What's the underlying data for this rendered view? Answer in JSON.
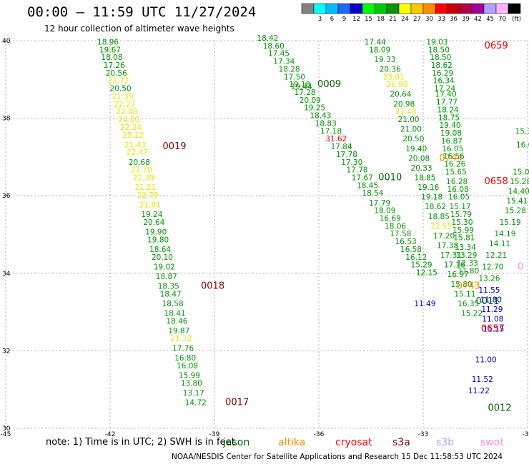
{
  "header": {
    "title": "00:00 – 11:59 UTC 11/27/2024",
    "subtitle": "12 hour collection of altimeter wave heights"
  },
  "colorbar": {
    "unit": "(ft)",
    "ticks": [
      "3",
      "6",
      "9",
      "12",
      "15",
      "18",
      "21",
      "24",
      "27",
      "30",
      "33",
      "36",
      "39",
      "42",
      "45",
      "70"
    ],
    "colors": [
      "#808080",
      "#00ffff",
      "#00bfff",
      "#1e64ff",
      "#0000cd",
      "#00ff00",
      "#00c800",
      "#009600",
      "#ffff00",
      "#ffc800",
      "#ff8c00",
      "#ff0000",
      "#cd0000",
      "#b4004b",
      "#a000a0",
      "#b4a0ff",
      "#ffb4ff",
      "#000000"
    ]
  },
  "footer": {
    "note": "note:  1) Time is in UTC; 2) SWH is in feet",
    "credit": "NOAA/NESDIS Center for Satellite Applications and Research   15 Dec 11:58:53 UTC 2024"
  },
  "satellites": {
    "jason": "jason",
    "altika": "altika",
    "cryosat": "cryosat",
    "s3a": "s3a",
    "s3b": "s3b",
    "swot": "swot"
  },
  "chart_data": {
    "type": "scatter",
    "xlabel": "",
    "ylabel": "",
    "xlim": [
      -45,
      -30
    ],
    "ylim": [
      30,
      40
    ],
    "x_ticks": [
      "-45",
      "-42",
      "-39",
      "-36",
      "-33",
      "-30"
    ],
    "y_ticks": [
      "30",
      "32",
      "34",
      "36",
      "38",
      "40"
    ],
    "grid": true,
    "colors": {
      "green": "#009600",
      "yellow": "#e6e600",
      "red": "#ff0000",
      "darkred": "#8b0000",
      "orange": "#ff8c00",
      "blue": "#0000cd",
      "pink": "#ff88dd",
      "darkgreen": "#006400"
    },
    "tracks": [
      {
        "values": [
          [
            -42.06,
            39.9,
            "18.96",
            "green"
          ],
          [
            -42.0,
            39.7,
            "19.67",
            "green"
          ],
          [
            -41.95,
            39.5,
            "18.08",
            "green"
          ],
          [
            -41.88,
            39.3,
            "17.26",
            "green"
          ],
          [
            -41.82,
            39.1,
            "20.56",
            "green"
          ],
          [
            -41.76,
            38.9,
            "21.72",
            "yellow"
          ],
          [
            -41.7,
            38.7,
            "20.50",
            "green"
          ],
          [
            -41.64,
            38.5,
            "21.39",
            "yellow"
          ],
          [
            -41.58,
            38.3,
            "22.27",
            "yellow"
          ],
          [
            -41.52,
            38.1,
            "22.88",
            "yellow"
          ],
          [
            -41.46,
            37.9,
            "24.00",
            "yellow"
          ],
          [
            -41.4,
            37.7,
            "22.24",
            "yellow"
          ],
          [
            -41.34,
            37.5,
            "23.12",
            "yellow"
          ],
          [
            -41.28,
            37.25,
            "21.43",
            "yellow"
          ],
          [
            -41.22,
            37.05,
            "22.47",
            "yellow"
          ],
          [
            -41.16,
            36.8,
            "20.68",
            "green"
          ],
          [
            -41.1,
            36.6,
            "21.70",
            "yellow"
          ],
          [
            -41.04,
            36.4,
            "22.39",
            "yellow"
          ],
          [
            -40.98,
            36.15,
            "21.21",
            "yellow"
          ],
          [
            -40.92,
            35.95,
            "22.79",
            "yellow"
          ],
          [
            -40.86,
            35.7,
            "21.81",
            "yellow"
          ],
          [
            -40.8,
            35.45,
            "19.24",
            "green"
          ],
          [
            -40.74,
            35.25,
            "20.64",
            "green"
          ],
          [
            -40.68,
            35.0,
            "19.90",
            "green"
          ],
          [
            -40.62,
            34.8,
            "19.80",
            "green"
          ],
          [
            -40.56,
            34.55,
            "18.64",
            "green"
          ],
          [
            -40.5,
            34.35,
            "20.10",
            "green"
          ],
          [
            -40.44,
            34.1,
            "19.02",
            "green"
          ],
          [
            -40.38,
            33.85,
            "18.87",
            "green"
          ],
          [
            -40.32,
            33.6,
            "18.35",
            "green"
          ],
          [
            -40.26,
            33.4,
            "18.47",
            "green"
          ],
          [
            -40.2,
            33.15,
            "18.58",
            "green"
          ],
          [
            -40.14,
            32.9,
            "18.41",
            "green"
          ],
          [
            -40.08,
            32.7,
            "18.46",
            "green"
          ],
          [
            -40.02,
            32.45,
            "19.87",
            "green"
          ],
          [
            -39.96,
            32.25,
            "21.32",
            "yellow"
          ],
          [
            -39.9,
            32.0,
            "17.76",
            "green"
          ],
          [
            -39.84,
            31.75,
            "16.80",
            "green"
          ],
          [
            -39.78,
            31.55,
            "16.08",
            "green"
          ],
          [
            -39.72,
            31.3,
            "15.99",
            "green"
          ],
          [
            -39.66,
            31.1,
            "13.80",
            "green"
          ],
          [
            -39.6,
            30.85,
            "13.17",
            "green"
          ],
          [
            -39.54,
            30.6,
            "14.72",
            "green"
          ]
        ],
        "labels": [
          [
            -40.15,
            37.2,
            "0019",
            "darkred"
          ],
          [
            -39.05,
            33.6,
            "0018",
            "darkred"
          ],
          [
            -38.35,
            30.6,
            "0017",
            "darkred"
          ]
        ]
      },
      {
        "values": [
          [
            -37.47,
            40.0,
            "18.42",
            "green"
          ],
          [
            -37.3,
            39.8,
            "18.60",
            "green"
          ],
          [
            -37.15,
            39.6,
            "17.45",
            "green"
          ],
          [
            -37.0,
            39.4,
            "17.34",
            "green"
          ],
          [
            -36.85,
            39.2,
            "18.28",
            "green"
          ],
          [
            -36.7,
            39.0,
            "17.50",
            "green"
          ],
          [
            -36.55,
            38.8,
            "19.18",
            "green"
          ],
          [
            -36.5,
            38.75,
            "19.44",
            "green"
          ],
          [
            -36.4,
            38.6,
            "17.28",
            "green"
          ],
          [
            -36.25,
            38.4,
            "20.09",
            "green"
          ],
          [
            -36.12,
            38.2,
            "19.25",
            "green"
          ],
          [
            -35.95,
            38.0,
            "18.43",
            "green"
          ],
          [
            -35.8,
            37.8,
            "18.83",
            "green"
          ],
          [
            -35.65,
            37.6,
            "17.18",
            "green"
          ],
          [
            -35.5,
            37.4,
            "31.62",
            "red"
          ],
          [
            -35.35,
            37.2,
            "17.84",
            "green"
          ],
          [
            -35.2,
            37.0,
            "17.78",
            "green"
          ],
          [
            -35.05,
            36.8,
            "17.30",
            "green"
          ],
          [
            -34.9,
            36.6,
            "17.78",
            "green"
          ],
          [
            -34.75,
            36.4,
            "17.67",
            "green"
          ],
          [
            -34.6,
            36.2,
            "18.45",
            "green"
          ],
          [
            -34.45,
            36.0,
            "18.54",
            "green"
          ],
          [
            -34.25,
            35.75,
            "17.79",
            "green"
          ],
          [
            -34.1,
            35.55,
            "18.09",
            "green"
          ],
          [
            -33.95,
            35.35,
            "16.69",
            "green"
          ],
          [
            -33.8,
            35.15,
            "18.06",
            "green"
          ],
          [
            -33.65,
            34.95,
            "17.58",
            "green"
          ],
          [
            -33.5,
            34.75,
            "16.53",
            "green"
          ],
          [
            -33.35,
            34.55,
            "16.58",
            "green"
          ],
          [
            -33.2,
            34.35,
            "16.12",
            "green"
          ],
          [
            -33.05,
            34.15,
            "15.29",
            "green"
          ],
          [
            -32.9,
            33.95,
            "12.15",
            "green"
          ]
        ],
        "labels": [
          [
            -35.7,
            38.8,
            "0009",
            "darkgreen"
          ]
        ]
      },
      {
        "values": [
          [
            -34.38,
            39.9,
            "17.44",
            "green"
          ],
          [
            -34.25,
            39.7,
            "18.09",
            "green"
          ],
          [
            -34.1,
            39.45,
            "19.33",
            "green"
          ],
          [
            -33.95,
            39.2,
            "20.36",
            "green"
          ],
          [
            -33.85,
            39.0,
            "23.01",
            "yellow"
          ],
          [
            -33.75,
            38.8,
            "26.90",
            "yellow"
          ],
          [
            -33.65,
            38.55,
            "20.64",
            "green"
          ],
          [
            -33.55,
            38.3,
            "20.98",
            "green"
          ],
          [
            -33.5,
            38.1,
            "21.43",
            "yellow"
          ],
          [
            -33.42,
            37.9,
            "21.00",
            "green"
          ],
          [
            -33.35,
            37.65,
            "21.00",
            "green"
          ],
          [
            -33.28,
            37.4,
            "20.50",
            "green"
          ],
          [
            -33.2,
            37.15,
            "19.40",
            "green"
          ],
          [
            -33.12,
            36.9,
            "20.08",
            "green"
          ],
          [
            -33.05,
            36.65,
            "20.33",
            "green"
          ],
          [
            -32.95,
            36.4,
            "18.85",
            "green"
          ],
          [
            -32.85,
            36.15,
            "19.16",
            "green"
          ],
          [
            -32.75,
            35.9,
            "19.18",
            "green"
          ],
          [
            -32.65,
            35.65,
            "18.62",
            "green"
          ],
          [
            -32.55,
            35.4,
            "18.85",
            "green"
          ],
          [
            -32.48,
            35.15,
            "22.55",
            "yellow"
          ],
          [
            -32.4,
            34.9,
            "17.20",
            "green"
          ],
          [
            -32.3,
            34.65,
            "17.38",
            "green"
          ],
          [
            -32.2,
            34.4,
            "17.31",
            "green"
          ],
          [
            -32.1,
            34.15,
            "17.16",
            "green"
          ],
          [
            -32.0,
            33.9,
            "16.97",
            "green"
          ],
          [
            -31.9,
            33.65,
            "15.80",
            "green"
          ],
          [
            -31.8,
            33.4,
            "15.11",
            "green"
          ],
          [
            -31.7,
            33.15,
            "16.35",
            "green"
          ],
          [
            -31.6,
            32.9,
            "15.22",
            "green"
          ]
        ],
        "labels": [
          [
            -33.95,
            36.4,
            "0010",
            "darkgreen"
          ],
          [
            -32.2,
            36.9,
            "0744",
            "orange"
          ]
        ]
      },
      {
        "values": [
          [
            -32.6,
            39.9,
            "19.03",
            "green"
          ],
          [
            -32.55,
            39.7,
            "18.50",
            "green"
          ],
          [
            -32.5,
            39.5,
            "18.50",
            "green"
          ],
          [
            -32.47,
            39.3,
            "18.62",
            "green"
          ],
          [
            -32.44,
            39.1,
            "16.29",
            "green"
          ],
          [
            -32.41,
            38.9,
            "16.34",
            "green"
          ],
          [
            -32.38,
            38.7,
            "17.24",
            "green"
          ],
          [
            -32.35,
            38.55,
            "17.40",
            "green"
          ],
          [
            -32.32,
            38.35,
            "17.77",
            "green"
          ],
          [
            -32.29,
            38.15,
            "18.24",
            "green"
          ],
          [
            -32.26,
            37.95,
            "18.75",
            "green"
          ],
          [
            -32.23,
            37.75,
            "19.40",
            "green"
          ],
          [
            -32.2,
            37.55,
            "19.08",
            "green"
          ],
          [
            -32.18,
            37.35,
            "16.87",
            "green"
          ],
          [
            -32.15,
            37.15,
            "16.05",
            "green"
          ],
          [
            -32.12,
            36.95,
            "16.56",
            "green"
          ],
          [
            -32.09,
            36.75,
            "16.26",
            "green"
          ],
          [
            -32.06,
            36.55,
            "15.65",
            "green"
          ],
          [
            -32.03,
            36.3,
            "16.28",
            "green"
          ],
          [
            -32.0,
            36.1,
            "16.08",
            "green"
          ],
          [
            -31.97,
            35.9,
            "16.05",
            "green"
          ],
          [
            -31.94,
            35.65,
            "15.17",
            "green"
          ],
          [
            -31.91,
            35.45,
            "15.79",
            "green"
          ],
          [
            -31.88,
            35.25,
            "15.30",
            "green"
          ],
          [
            -31.85,
            35.05,
            "15.99",
            "green"
          ],
          [
            -31.82,
            34.85,
            "15.81",
            "green"
          ],
          [
            -31.79,
            34.6,
            "13.34",
            "green"
          ],
          [
            -31.76,
            34.4,
            "13.29",
            "green"
          ],
          [
            -31.73,
            34.2,
            "12.33",
            "green"
          ],
          [
            -31.7,
            34.0,
            "11.80",
            "green"
          ]
        ],
        "labels": [
          [
            -30.9,
            39.8,
            "0659",
            "red"
          ],
          [
            -30.9,
            36.3,
            "0658",
            "red"
          ],
          [
            -31.15,
            33.2,
            "0011",
            "darkgreen"
          ],
          [
            -31.0,
            32.5,
            "0657",
            "red"
          ],
          [
            -31.7,
            33.6,
            "0743",
            "orange"
          ],
          [
            -30.8,
            30.45,
            "0012",
            "darkgreen"
          ]
        ]
      },
      {
        "values": [
          [
            -31.1,
            33.5,
            "11.55",
            "blue"
          ],
          [
            -31.05,
            33.25,
            "11.80",
            "blue"
          ],
          [
            -31.02,
            33.0,
            "11.29",
            "blue"
          ],
          [
            -31.0,
            32.75,
            "11.08",
            "blue"
          ],
          [
            -30.98,
            32.5,
            "11.15",
            "blue"
          ],
          [
            -31.2,
            31.7,
            "11.00",
            "blue"
          ],
          [
            -31.3,
            31.2,
            "11.52",
            "blue"
          ],
          [
            -31.4,
            30.9,
            "11.22",
            "blue"
          ],
          [
            -32.95,
            33.15,
            "11.49",
            "blue"
          ]
        ],
        "labels": []
      },
      {
        "values": [
          [
            -30.05,
            37.6,
            "15.31",
            "green"
          ],
          [
            -30.02,
            37.25,
            "16.01",
            "green"
          ],
          [
            -30.12,
            36.55,
            "15.09",
            "green"
          ],
          [
            -30.2,
            36.3,
            "15.28",
            "green"
          ],
          [
            -30.25,
            36.05,
            "14.40",
            "green"
          ],
          [
            -30.3,
            35.8,
            "15.41",
            "green"
          ],
          [
            -30.35,
            35.55,
            "15.28",
            "green"
          ],
          [
            -30.5,
            35.25,
            "15.19",
            "green"
          ],
          [
            -30.65,
            34.95,
            "14.19",
            "green"
          ],
          [
            -30.8,
            34.7,
            "14.11",
            "green"
          ],
          [
            -30.9,
            34.4,
            "12.21",
            "green"
          ],
          [
            -31.0,
            34.1,
            "12.70",
            "green"
          ],
          [
            -31.1,
            33.8,
            "13.26",
            "green"
          ]
        ],
        "labels": [
          [
            -30.2,
            34.1,
            "0",
            "pink"
          ]
        ]
      }
    ]
  }
}
